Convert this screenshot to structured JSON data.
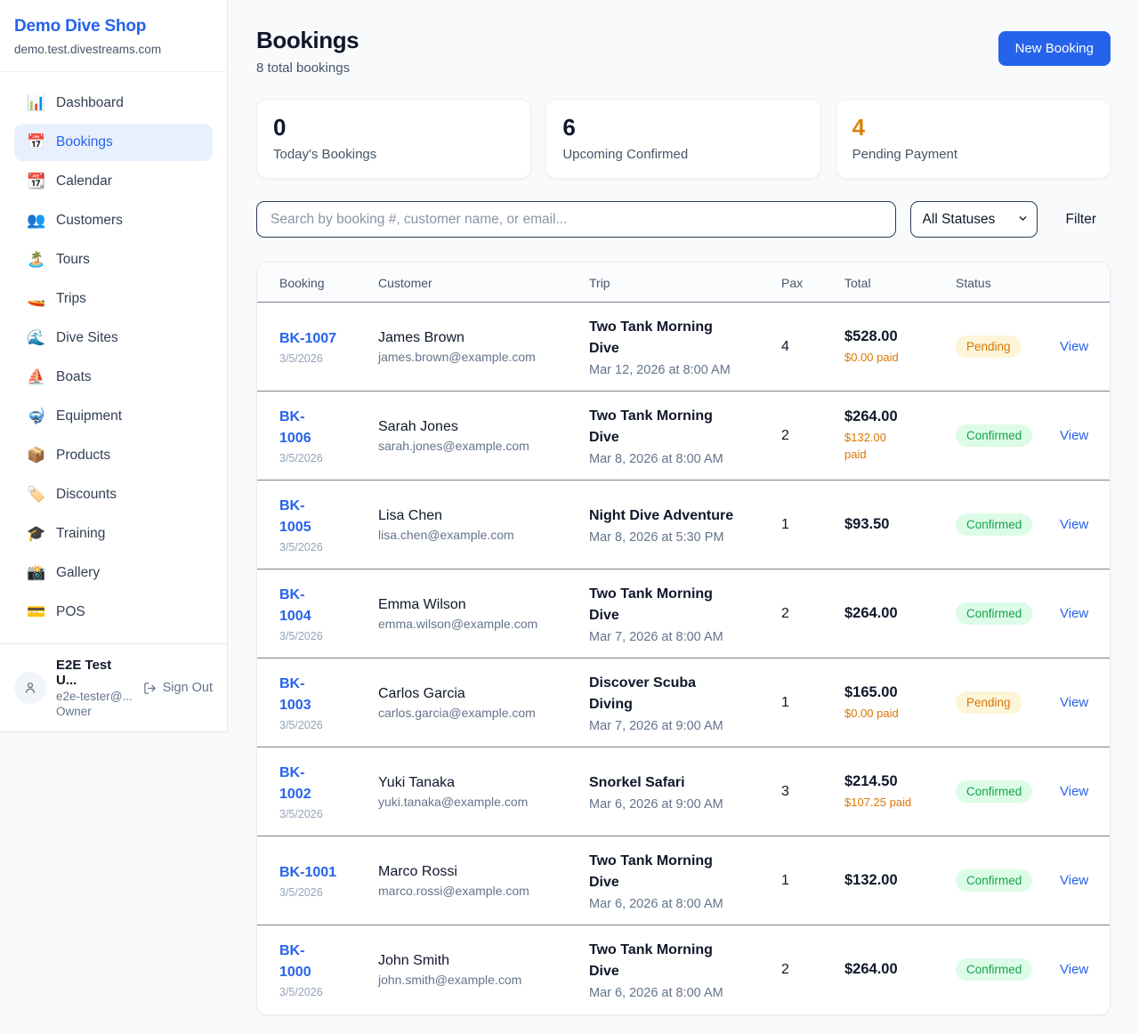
{
  "brand": {
    "name": "Demo Dive Shop",
    "domain": "demo.test.divestreams.com"
  },
  "sidebar": {
    "items": [
      {
        "label": "Dashboard",
        "icon": "📊",
        "icon_name": "bar-chart-icon",
        "active": false
      },
      {
        "label": "Bookings",
        "icon": "📅",
        "icon_name": "calendar-date-icon",
        "active": true
      },
      {
        "label": "Calendar",
        "icon": "📆",
        "icon_name": "tear-off-calendar-icon",
        "active": false
      },
      {
        "label": "Customers",
        "icon": "👥",
        "icon_name": "people-icon",
        "active": false
      },
      {
        "label": "Tours",
        "icon": "🏝️",
        "icon_name": "island-icon",
        "active": false
      },
      {
        "label": "Trips",
        "icon": "🚤",
        "icon_name": "speedboat-icon",
        "active": false
      },
      {
        "label": "Dive Sites",
        "icon": "🌊",
        "icon_name": "wave-icon",
        "active": false
      },
      {
        "label": "Boats",
        "icon": "⛵",
        "icon_name": "sailboat-icon",
        "active": false
      },
      {
        "label": "Equipment",
        "icon": "🤿",
        "icon_name": "diving-mask-icon",
        "active": false
      },
      {
        "label": "Products",
        "icon": "📦",
        "icon_name": "package-icon",
        "active": false
      },
      {
        "label": "Discounts",
        "icon": "🏷️",
        "icon_name": "tag-icon",
        "active": false
      },
      {
        "label": "Training",
        "icon": "🎓",
        "icon_name": "graduation-cap-icon",
        "active": false
      },
      {
        "label": "Gallery",
        "icon": "📸",
        "icon_name": "camera-icon",
        "active": false
      },
      {
        "label": "POS",
        "icon": "💳",
        "icon_name": "credit-card-icon",
        "active": false
      }
    ]
  },
  "user": {
    "name": "E2E Test U...",
    "email": "e2e-tester@...",
    "role": "Owner",
    "sign_out_label": "Sign Out"
  },
  "header": {
    "title": "Bookings",
    "subtitle": "8 total bookings",
    "new_booking_label": "New Booking"
  },
  "stats": [
    {
      "value": "0",
      "label": "Today's Bookings",
      "accent": false
    },
    {
      "value": "6",
      "label": "Upcoming Confirmed",
      "accent": false
    },
    {
      "value": "4",
      "label": "Pending Payment",
      "accent": true
    }
  ],
  "filters": {
    "search_placeholder": "Search by booking #, customer name, or email...",
    "status_selected": "All Statuses",
    "filter_label": "Filter"
  },
  "table": {
    "columns": [
      "Booking",
      "Customer",
      "Trip",
      "Pax",
      "Total",
      "Status",
      ""
    ],
    "row_action_label": "View",
    "rows": [
      {
        "id_lines": [
          "BK-1007"
        ],
        "date": "3/5/2026",
        "customer": "James Brown",
        "email": "james.brown@example.com",
        "trip_lines": [
          "Two Tank Morning",
          "Dive"
        ],
        "trip_time": "Mar 12, 2026 at 8:00 AM",
        "pax": "4",
        "total": "$528.00",
        "paid_lines": [
          "$0.00 paid"
        ],
        "status": "Pending"
      },
      {
        "id_lines": [
          "BK-",
          "1006"
        ],
        "date": "3/5/2026",
        "customer": "Sarah Jones",
        "email": "sarah.jones@example.com",
        "trip_lines": [
          "Two Tank Morning",
          "Dive"
        ],
        "trip_time": "Mar 8, 2026 at 8:00 AM",
        "pax": "2",
        "total": "$264.00",
        "paid_lines": [
          "$132.00",
          "paid"
        ],
        "status": "Confirmed"
      },
      {
        "id_lines": [
          "BK-",
          "1005"
        ],
        "date": "3/5/2026",
        "customer": "Lisa Chen",
        "email": "lisa.chen@example.com",
        "trip_lines": [
          "Night Dive Adventure"
        ],
        "trip_time": "Mar 8, 2026 at 5:30 PM",
        "pax": "1",
        "total": "$93.50",
        "paid_lines": null,
        "status": "Confirmed"
      },
      {
        "id_lines": [
          "BK-",
          "1004"
        ],
        "date": "3/5/2026",
        "customer": "Emma Wilson",
        "email": "emma.wilson@example.com",
        "trip_lines": [
          "Two Tank Morning",
          "Dive"
        ],
        "trip_time": "Mar 7, 2026 at 8:00 AM",
        "pax": "2",
        "total": "$264.00",
        "paid_lines": null,
        "status": "Confirmed"
      },
      {
        "id_lines": [
          "BK-",
          "1003"
        ],
        "date": "3/5/2026",
        "customer": "Carlos Garcia",
        "email": "carlos.garcia@example.com",
        "trip_lines": [
          "Discover Scuba",
          "Diving"
        ],
        "trip_time": "Mar 7, 2026 at 9:00 AM",
        "pax": "1",
        "total": "$165.00",
        "paid_lines": [
          "$0.00 paid"
        ],
        "status": "Pending"
      },
      {
        "id_lines": [
          "BK-",
          "1002"
        ],
        "date": "3/5/2026",
        "customer": "Yuki Tanaka",
        "email": "yuki.tanaka@example.com",
        "trip_lines": [
          "Snorkel Safari"
        ],
        "trip_time": "Mar 6, 2026 at 9:00 AM",
        "pax": "3",
        "total": "$214.50",
        "paid_lines": [
          "$107.25 paid"
        ],
        "status": "Confirmed"
      },
      {
        "id_lines": [
          "BK-1001"
        ],
        "date": "3/5/2026",
        "customer": "Marco Rossi",
        "email": "marco.rossi@example.com",
        "trip_lines": [
          "Two Tank Morning",
          "Dive"
        ],
        "trip_time": "Mar 6, 2026 at 8:00 AM",
        "pax": "1",
        "total": "$132.00",
        "paid_lines": null,
        "status": "Confirmed"
      },
      {
        "id_lines": [
          "BK-",
          "1000"
        ],
        "date": "3/5/2026",
        "customer": "John Smith",
        "email": "john.smith@example.com",
        "trip_lines": [
          "Two Tank Morning",
          "Dive"
        ],
        "trip_time": "Mar 6, 2026 at 8:00 AM",
        "pax": "2",
        "total": "$264.00",
        "paid_lines": null,
        "status": "Confirmed"
      }
    ]
  },
  "colors": {
    "accent_blue": "#2563eb",
    "orange": "#d97706",
    "green": "#16a34a",
    "pending_bg": "#fdf5d8",
    "confirmed_bg": "#dcfce7"
  }
}
